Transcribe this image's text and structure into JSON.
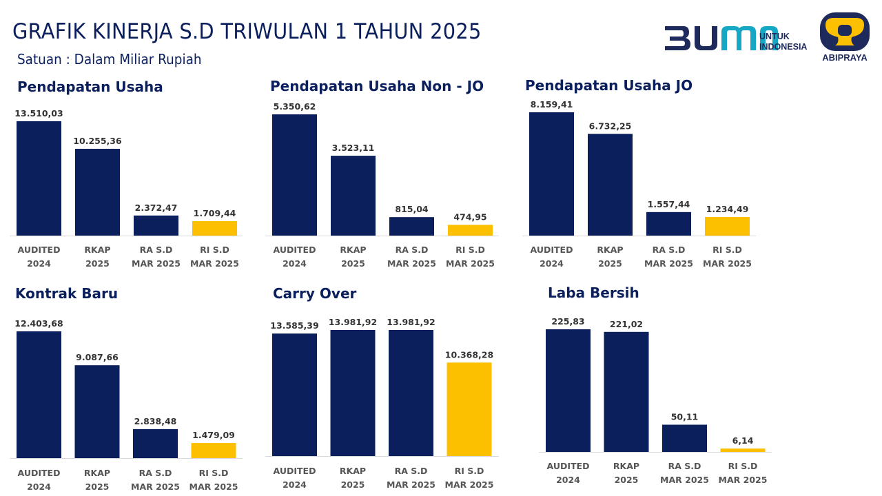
{
  "header": {
    "title": "GRAFIK KINERJA S.D TRIWULAN 1 TAHUN 2025",
    "subtitle": "Satuan : Dalam Miliar Rupiah"
  },
  "logos": {
    "bumn": {
      "mark": "BUMN",
      "tagline_line1": "UNTUK",
      "tagline_line2": "INDONESIA"
    },
    "abipraya": {
      "text": "ABIPRAYA"
    }
  },
  "colors": {
    "navy": "#0a1f5c",
    "gold": "#fcc000",
    "label": "#555555"
  },
  "chart_data": [
    {
      "type": "bar",
      "title": "Pendapatan Usaha",
      "categories": [
        [
          "AUDITED",
          "2024"
        ],
        [
          "RKAP",
          "2025"
        ],
        [
          "RA S.D",
          "MAR 2025"
        ],
        [
          "RI S.D",
          "MAR 2025"
        ]
      ],
      "values": [
        13510.03,
        10255.36,
        2372.47,
        1709.44
      ],
      "value_labels": [
        "13.510,03",
        "10.255,36",
        "2.372,47",
        "1.709,44"
      ],
      "bar_colors": [
        "#0a1f5c",
        "#0a1f5c",
        "#0a1f5c",
        "#fcc000"
      ],
      "grid": false,
      "legend": "none"
    },
    {
      "type": "bar",
      "title": "Pendapatan Usaha Non - JO",
      "categories": [
        [
          "AUDITED",
          "2024"
        ],
        [
          "RKAP",
          "2025"
        ],
        [
          "RA S.D",
          "MAR 2025"
        ],
        [
          "RI S.D",
          "MAR 2025"
        ]
      ],
      "values": [
        5350.62,
        3523.11,
        815.04,
        474.95
      ],
      "value_labels": [
        "5.350,62",
        "3.523,11",
        "815,04",
        "474,95"
      ],
      "bar_colors": [
        "#0a1f5c",
        "#0a1f5c",
        "#0a1f5c",
        "#fcc000"
      ],
      "grid": false,
      "legend": "none"
    },
    {
      "type": "bar",
      "title": "Pendapatan Usaha JO",
      "categories": [
        [
          "AUDITED",
          "2024"
        ],
        [
          "RKAP",
          "2025"
        ],
        [
          "RA S.D",
          "MAR 2025"
        ],
        [
          "RI S.D",
          "MAR 2025"
        ]
      ],
      "values": [
        8159.41,
        6732.25,
        1557.44,
        1234.49
      ],
      "value_labels": [
        "8.159,41",
        "6.732,25",
        "1.557,44",
        "1.234,49"
      ],
      "bar_colors": [
        "#0a1f5c",
        "#0a1f5c",
        "#0a1f5c",
        "#fcc000"
      ],
      "grid": false,
      "legend": "none"
    },
    {
      "type": "bar",
      "title": "Kontrak Baru",
      "categories": [
        [
          "AUDITED",
          "2024"
        ],
        [
          "RKAP",
          "2025"
        ],
        [
          "RA S.D",
          "MAR 2025"
        ],
        [
          "RI S.D",
          "MAR 2025"
        ]
      ],
      "values": [
        12403.68,
        9087.66,
        2838.48,
        1479.09
      ],
      "value_labels": [
        "12.403,68",
        "9.087,66",
        "2.838,48",
        "1.479,09"
      ],
      "bar_colors": [
        "#0a1f5c",
        "#0a1f5c",
        "#0a1f5c",
        "#fcc000"
      ],
      "grid": false,
      "legend": "none"
    },
    {
      "type": "bar",
      "title": "Carry Over",
      "categories": [
        [
          "AUDITED",
          "2024"
        ],
        [
          "RKAP",
          "2025"
        ],
        [
          "RA S.D",
          "MAR 2025"
        ],
        [
          "RI S.D",
          "MAR 2025"
        ]
      ],
      "values": [
        13585.39,
        13981.92,
        13981.92,
        10368.28
      ],
      "value_labels": [
        "13.585,39",
        "13.981,92",
        "13.981,92",
        "10.368,28"
      ],
      "bar_colors": [
        "#0a1f5c",
        "#0a1f5c",
        "#0a1f5c",
        "#fcc000"
      ],
      "grid": false,
      "legend": "none"
    },
    {
      "type": "bar",
      "title": "Laba Bersih",
      "categories": [
        [
          "AUDITED",
          "2024"
        ],
        [
          "RKAP",
          "2025"
        ],
        [
          "RA S.D",
          "MAR 2025"
        ],
        [
          "RI S.D",
          "MAR 2025"
        ]
      ],
      "values": [
        225.83,
        221.02,
        50.11,
        6.14
      ],
      "value_labels": [
        "225,83",
        "221,02",
        "50,11",
        "6,14"
      ],
      "bar_colors": [
        "#0a1f5c",
        "#0a1f5c",
        "#0a1f5c",
        "#fcc000"
      ],
      "grid": false,
      "legend": "none"
    }
  ]
}
